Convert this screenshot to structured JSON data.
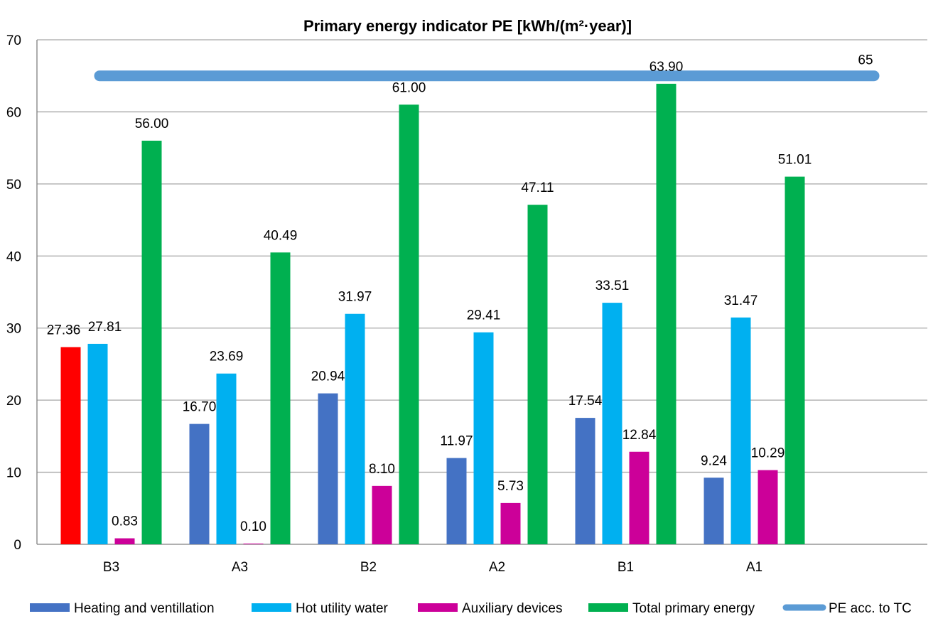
{
  "chart_data": {
    "type": "bar",
    "title": "Primary energy indicator PE [kWh/(m²·year)]",
    "xlabel": "",
    "ylabel": "",
    "ylim": [
      0,
      70
    ],
    "yticks": [
      0,
      10,
      20,
      30,
      40,
      50,
      60,
      70
    ],
    "grid": true,
    "legend_position": "bottom",
    "categories": [
      "B3",
      "A3",
      "B2",
      "A2",
      "B1",
      "A1"
    ],
    "series": [
      {
        "name": "Heating and ventillation",
        "color": "#4472C4",
        "point_colors": [
          "#FF0000",
          null,
          null,
          null,
          null,
          null
        ],
        "values": [
          27.36,
          16.7,
          20.94,
          11.97,
          17.54,
          9.24
        ],
        "labels": [
          "27.36",
          "16.70",
          "20.94",
          "11.97",
          "17.54",
          "9.24"
        ]
      },
      {
        "name": "Hot utility water",
        "color": "#00B0F0",
        "values": [
          27.81,
          23.69,
          31.97,
          29.41,
          33.51,
          31.47
        ],
        "labels": [
          "27.81",
          "23.69",
          "31.97",
          "29.41",
          "33.51",
          "31.47"
        ]
      },
      {
        "name": "Auxiliary devices",
        "color": "#CC0099",
        "values": [
          0.83,
          0.1,
          8.1,
          5.73,
          12.84,
          10.29
        ],
        "labels": [
          "0.83",
          "0.10",
          "8.10",
          "5.73",
          "12.84",
          "10.29"
        ]
      },
      {
        "name": "Total primary energy",
        "color": "#00B050",
        "values": [
          56.0,
          40.49,
          61.0,
          47.11,
          63.9,
          51.01
        ],
        "labels": [
          "56.00",
          "40.49",
          "61.00",
          "47.11",
          "63.90",
          "51.01"
        ]
      }
    ],
    "reference_line": {
      "name": "PE acc. to TC",
      "value": 65,
      "label": "65",
      "color": "#5B9BD5"
    }
  }
}
